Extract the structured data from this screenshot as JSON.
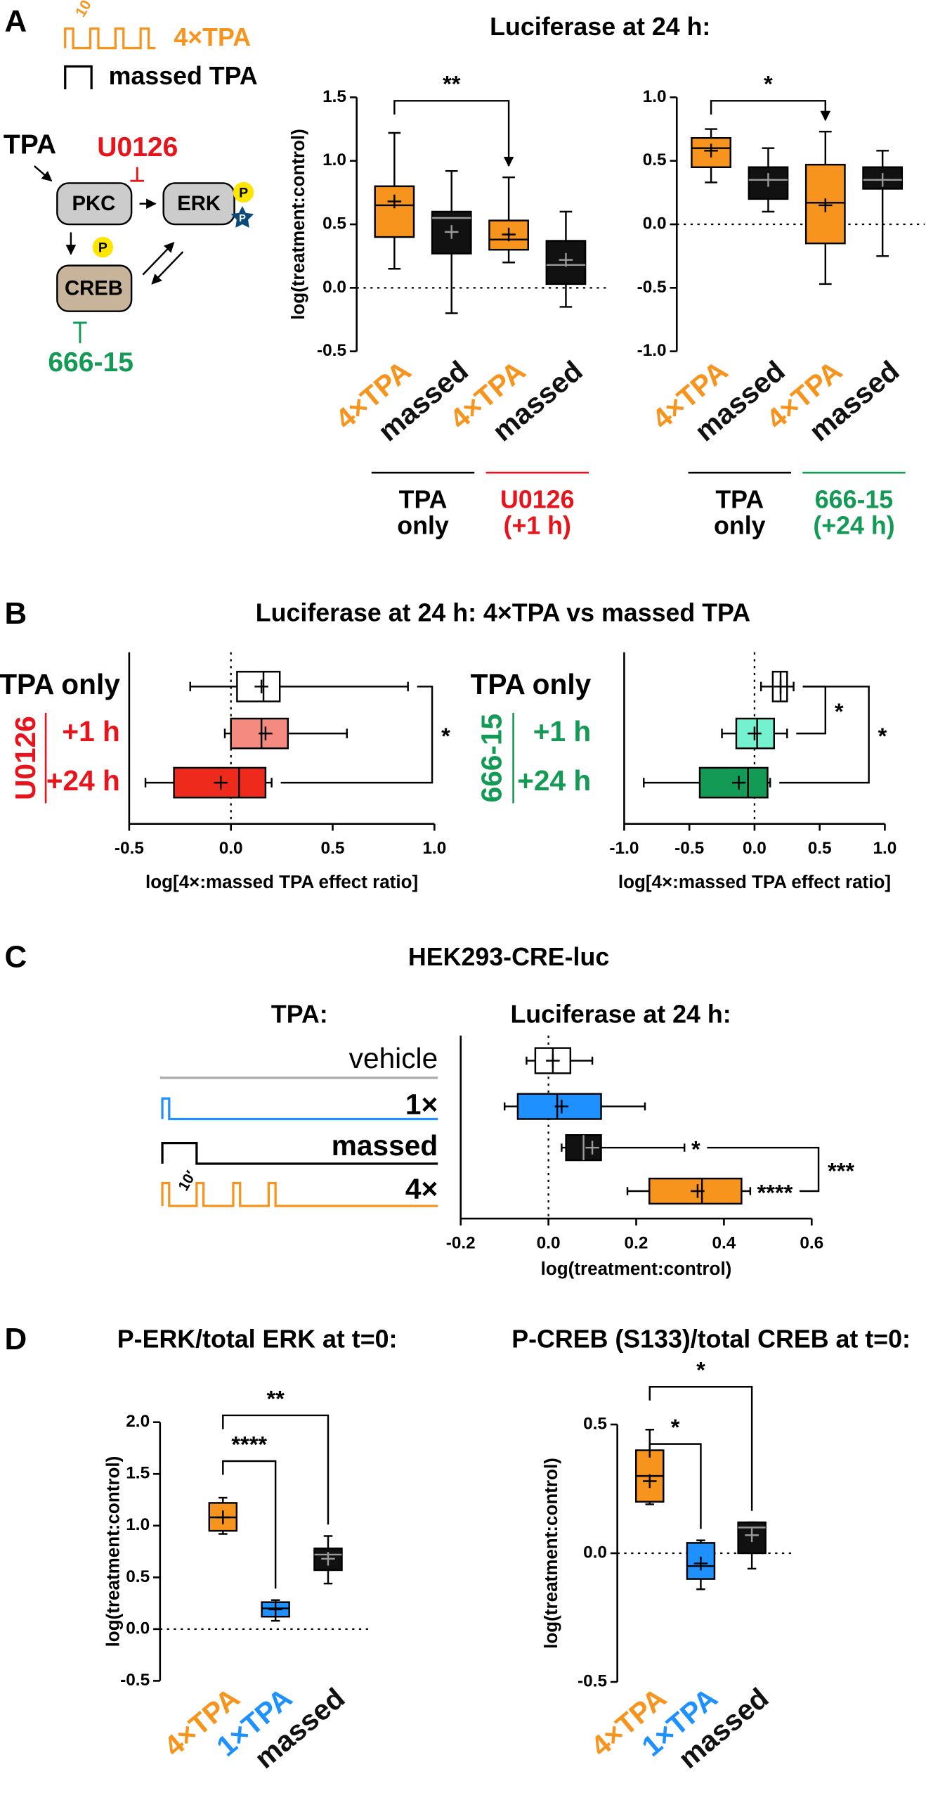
{
  "panel_labels": [
    "A",
    "B",
    "C",
    "D"
  ],
  "diagram_a": {
    "train_label": "4×TPA",
    "interval": "10′",
    "massed_label": "massed TPA",
    "stimulus": "TPA",
    "kinase_1": "PKC",
    "kinase_2": "ERK",
    "inhibitor_1": "U0126",
    "target": "CREB",
    "phospho": "P",
    "inhibitor_2": "666-15"
  },
  "diagram_c": {
    "heading": "TPA:",
    "interval": "10′"
  },
  "chart_data": [
    {
      "type": "box",
      "orientation": "vertical",
      "title": "Luciferase at 24 h:",
      "ylabel": "log(treatment:control)",
      "ylim": [
        -0.5,
        1.5
      ],
      "yticks": [
        -0.5,
        {
          "value": 0,
          "label": "0.0"
        },
        0.5,
        {
          "value": 1,
          "label": "1.0"
        },
        1.5
      ],
      "reference": 0,
      "categories": [
        "4×TPA",
        "massed",
        "4×TPA",
        "massed"
      ],
      "colors": [
        "#f7941d",
        "#111111",
        "#f7941d",
        "#111111"
      ],
      "boxes": [
        {
          "min": 0.15,
          "q1": 0.4,
          "median": 0.65,
          "q3": 0.8,
          "max": 1.22,
          "mean": 0.68
        },
        {
          "min": -0.2,
          "q1": 0.27,
          "median": 0.55,
          "q3": 0.6,
          "max": 0.92,
          "mean": 0.44
        },
        {
          "min": 0.2,
          "q1": 0.3,
          "median": 0.38,
          "q3": 0.53,
          "max": 0.87,
          "mean": 0.42
        },
        {
          "min": -0.15,
          "q1": 0.03,
          "median": 0.18,
          "q3": 0.37,
          "max": 0.6,
          "mean": 0.22
        }
      ],
      "groups": [
        {
          "lines": [
            "TPA",
            "only"
          ],
          "color": "#000000",
          "span": [
            0,
            1
          ]
        },
        {
          "lines": [
            "U0126",
            "(+1 h)"
          ],
          "color": "#e8141c",
          "span": [
            2,
            3
          ]
        }
      ],
      "significance": [
        {
          "pair": [
            0,
            2
          ],
          "label": "**"
        }
      ]
    },
    {
      "type": "box",
      "orientation": "vertical",
      "ylim": [
        -1,
        1
      ],
      "yticks": [
        {
          "value": -1,
          "label": "-1.0"
        },
        -0.5,
        {
          "value": 0,
          "label": "0.0"
        },
        0.5,
        {
          "value": 1,
          "label": "1.0"
        }
      ],
      "reference": 0,
      "categories": [
        "4×TPA",
        "massed",
        "4×TPA",
        "massed"
      ],
      "colors": [
        "#f7941d",
        "#111111",
        "#f7941d",
        "#111111"
      ],
      "boxes": [
        {
          "min": 0.33,
          "q1": 0.45,
          "median": 0.6,
          "q3": 0.68,
          "max": 0.75,
          "mean": 0.58
        },
        {
          "min": 0.1,
          "q1": 0.2,
          "median": 0.35,
          "q3": 0.45,
          "max": 0.6,
          "mean": 0.35
        },
        {
          "min": -0.47,
          "q1": -0.15,
          "median": 0.17,
          "q3": 0.47,
          "max": 0.73,
          "mean": 0.15
        },
        {
          "min": -0.25,
          "q1": 0.28,
          "median": 0.35,
          "q3": 0.45,
          "max": 0.58,
          "mean": 0.35
        }
      ],
      "groups": [
        {
          "lines": [
            "TPA",
            "only"
          ],
          "color": "#000000",
          "span": [
            0,
            1
          ]
        },
        {
          "lines": [
            "666-15",
            "(+24 h)"
          ],
          "color": "#139a55",
          "span": [
            2,
            3
          ]
        }
      ],
      "significance": [
        {
          "pair": [
            0,
            2
          ],
          "label": "*"
        }
      ]
    },
    {
      "type": "box",
      "orientation": "horizontal",
      "title": "Luciferase at 24 h: 4×TPA vs massed TPA",
      "xlabel": "log[4×:massed TPA effect ratio]",
      "xlim": [
        -0.5,
        1
      ],
      "xticks": [
        -0.5,
        {
          "value": 0,
          "label": "0.0"
        },
        0.5,
        {
          "value": 1,
          "label": "1.0"
        }
      ],
      "reference": 0,
      "categories": [
        "TPA only",
        "+1 h",
        "+24 h"
      ],
      "colors": [
        "#ffffff",
        "#f58a80",
        "#ee2a1c"
      ],
      "label_colors": [
        "#000000",
        "#e8141c",
        "#e8141c"
      ],
      "boxes": [
        {
          "min": -0.2,
          "q1": 0.03,
          "median": 0.16,
          "q3": 0.24,
          "max": 0.87,
          "mean": 0.15
        },
        {
          "min": -0.03,
          "q1": 0,
          "median": 0.15,
          "q3": 0.28,
          "max": 0.57,
          "mean": 0.17
        },
        {
          "min": -0.42,
          "q1": -0.28,
          "median": 0.04,
          "q3": 0.17,
          "max": 0.2,
          "mean": -0.05
        }
      ],
      "groups": [
        {
          "lines": [
            "U0126"
          ],
          "color": "#e8141c",
          "span": [
            1,
            2
          ]
        }
      ],
      "significance": [
        {
          "pair": [
            0,
            2
          ],
          "label": "*"
        }
      ]
    },
    {
      "type": "box",
      "orientation": "horizontal",
      "xlabel": "log[4×:massed TPA effect ratio]",
      "xlim": [
        -1,
        1
      ],
      "xticks": [
        {
          "value": -1,
          "label": "-1.0"
        },
        -0.5,
        {
          "value": 0,
          "label": "0.0"
        },
        0.5,
        {
          "value": 1,
          "label": "1.0"
        }
      ],
      "reference": 0,
      "categories": [
        "TPA only",
        "+1 h",
        "+24 h"
      ],
      "colors": [
        "#ffffff",
        "#74f2cf",
        "#139a55"
      ],
      "label_colors": [
        "#000000",
        "#139a55",
        "#139a55"
      ],
      "boxes": [
        {
          "min": 0.05,
          "q1": 0.14,
          "median": 0.2,
          "q3": 0.25,
          "max": 0.3,
          "mean": 0.2
        },
        {
          "min": -0.25,
          "q1": -0.14,
          "median": 0.02,
          "q3": 0.15,
          "max": 0.25,
          "mean": 0
        },
        {
          "min": -0.85,
          "q1": -0.42,
          "median": -0.05,
          "q3": 0.1,
          "max": 0.12,
          "mean": -0.12
        }
      ],
      "groups": [
        {
          "lines": [
            "666-15"
          ],
          "color": "#139a55",
          "span": [
            1,
            2
          ]
        }
      ],
      "significance": [
        {
          "pair": [
            0,
            1
          ],
          "label": "*"
        },
        {
          "pair": [
            0,
            2
          ],
          "label": "*"
        }
      ]
    },
    {
      "type": "box",
      "orientation": "horizontal",
      "title": "HEK293-CRE-luc",
      "subtitle": "Luciferase at 24 h:",
      "xlabel": "log(treatment:control)",
      "xlim": [
        -0.2,
        0.6
      ],
      "xticks": [
        -0.2,
        {
          "value": 0,
          "label": "0.0"
        },
        0.2,
        0.4,
        0.6
      ],
      "reference": 0,
      "categories": [
        "vehicle",
        "1×",
        "massed",
        "4×"
      ],
      "colors": [
        "#ffffff",
        "#1e90ff",
        "#111111",
        "#f7941d"
      ],
      "label_colors": [
        "#000000",
        "#000000",
        "#000000",
        "#000000"
      ],
      "boxes": [
        {
          "min": -0.05,
          "q1": -0.03,
          "median": 0.01,
          "q3": 0.05,
          "max": 0.1,
          "mean": 0.01
        },
        {
          "min": -0.1,
          "q1": -0.07,
          "median": 0.02,
          "q3": 0.12,
          "max": 0.22,
          "mean": 0.03
        },
        {
          "min": 0.03,
          "q1": 0.04,
          "median": 0.08,
          "q3": 0.12,
          "max": 0.31,
          "mean": 0.1
        },
        {
          "min": 0.18,
          "q1": 0.23,
          "median": 0.35,
          "q3": 0.44,
          "max": 0.46,
          "mean": 0.34
        }
      ],
      "box_labels": [
        null,
        null,
        "*",
        "****"
      ],
      "significance": [
        {
          "pair": [
            2,
            3
          ],
          "label": "***"
        }
      ]
    },
    {
      "type": "box",
      "orientation": "vertical",
      "title": "P-ERK/total ERK at t=0:",
      "ylabel": "log(treatment:control)",
      "ylim": [
        -0.5,
        2
      ],
      "yticks": [
        -0.5,
        {
          "value": 0,
          "label": "0.0"
        },
        0.5,
        {
          "value": 1,
          "label": "1.0"
        },
        1.5,
        {
          "value": 2,
          "label": "2.0"
        }
      ],
      "reference": 0,
      "categories": [
        "4×TPA",
        "1×TPA",
        "massed"
      ],
      "colors": [
        "#f7941d",
        "#1e90ff",
        "#111111"
      ],
      "boxes": [
        {
          "min": 0.92,
          "q1": 0.95,
          "median": 1.08,
          "q3": 1.22,
          "max": 1.27,
          "mean": 1.08
        },
        {
          "min": 0.08,
          "q1": 0.12,
          "median": 0.2,
          "q3": 0.26,
          "max": 0.28,
          "mean": 0.19
        },
        {
          "min": 0.44,
          "q1": 0.57,
          "median": 0.72,
          "q3": 0.78,
          "max": 0.9,
          "mean": 0.68
        }
      ],
      "significance": [
        {
          "pair": [
            0,
            1
          ],
          "label": "****"
        },
        {
          "pair": [
            0,
            2
          ],
          "label": "**"
        }
      ]
    },
    {
      "type": "box",
      "orientation": "vertical",
      "title": "P-CREB (S133)/total CREB at t=0:",
      "ylabel": "log(treatment:control)",
      "ylim": [
        -0.5,
        0.5
      ],
      "yticks": [
        -0.5,
        {
          "value": 0,
          "label": "0.0"
        },
        0.5
      ],
      "reference": 0,
      "categories": [
        "4×TPA",
        "1×TPA",
        "massed"
      ],
      "colors": [
        "#f7941d",
        "#1e90ff",
        "#111111"
      ],
      "boxes": [
        {
          "min": 0.19,
          "q1": 0.2,
          "median": 0.3,
          "q3": 0.4,
          "max": 0.48,
          "mean": 0.28
        },
        {
          "min": -0.14,
          "q1": -0.1,
          "median": -0.05,
          "q3": 0.04,
          "max": 0.05,
          "mean": -0.04
        },
        {
          "min": -0.06,
          "q1": 0,
          "median": 0.1,
          "q3": 0.12,
          "max": 0.12,
          "mean": 0.07
        }
      ],
      "significance": [
        {
          "pair": [
            0,
            1
          ],
          "label": "*"
        },
        {
          "pair": [
            0,
            2
          ],
          "label": "*"
        }
      ]
    }
  ]
}
